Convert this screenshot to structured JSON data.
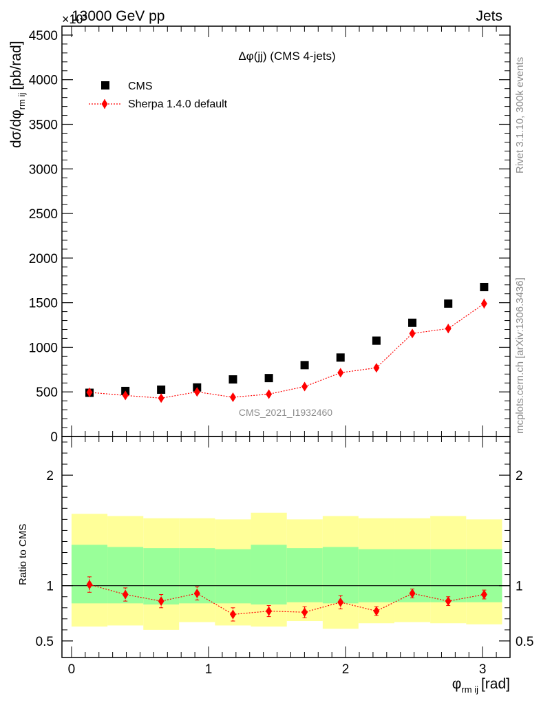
{
  "header": {
    "left": "13000 GeV pp",
    "right": "Jets",
    "multiplier": "×10³"
  },
  "side": {
    "rivet": "Rivet 3.1.10,  300k events",
    "mcplots": "mcplots.cern.ch [arXiv:1306.3436]"
  },
  "colors": {
    "data": "#000000",
    "mc": "#ff0000",
    "band_inner": "#99ff99",
    "band_outer": "#ffff99"
  },
  "chart_data": [
    {
      "type": "scatter",
      "title": "Δφ(jj) (CMS 4-jets)",
      "watermark": "CMS_2021_I1932460",
      "xlabel": "φ",
      "xlabel_sub": "rm ij",
      "xlabel_unit": "[rad]",
      "ylabel": "dσ/dφ",
      "ylabel_sub": "rm ij",
      "ylabel_unit": "[pb/rad]",
      "xlim": [
        -0.07,
        3.2
      ],
      "ylim": [
        0,
        4600
      ],
      "y_ticks": [
        0,
        500,
        1000,
        1500,
        2000,
        2500,
        3000,
        3500,
        4000,
        4500
      ],
      "y_tick_labels": [
        "0",
        "500",
        "1000",
        "1500",
        "2000",
        "2500",
        "3000",
        "3500",
        "4000",
        "4500"
      ],
      "x_ticks": [
        0,
        1,
        2,
        3
      ],
      "x_tick_labels": [
        "0",
        "1",
        "2",
        "3"
      ],
      "legend": {
        "placement": "top-left",
        "entries": [
          "CMS",
          "Sherpa 1.4.0 default"
        ]
      },
      "x": [
        0.131,
        0.393,
        0.654,
        0.916,
        1.178,
        1.44,
        1.701,
        1.963,
        2.225,
        2.487,
        2.749,
        3.011
      ],
      "series": [
        {
          "name": "CMS",
          "values": [
            490,
            510,
            525,
            550,
            640,
            655,
            800,
            885,
            1075,
            1275,
            1490,
            1675
          ]
        },
        {
          "name": "Sherpa 1.4.0 default",
          "values": [
            495,
            460,
            430,
            500,
            440,
            475,
            560,
            715,
            770,
            1155,
            1210,
            1490
          ],
          "errors": [
            25,
            25,
            25,
            35,
            25,
            25,
            30,
            40,
            40,
            45,
            50,
            55
          ]
        }
      ]
    },
    {
      "type": "scatter",
      "ylabel": "Ratio to CMS",
      "xlabel": "φ rm ij [rad]",
      "xlim": [
        -0.07,
        3.2
      ],
      "ylim": [
        0.35,
        2.35
      ],
      "y_ticks": [
        0.5,
        1,
        2
      ],
      "y_tick_labels": [
        "0.5",
        "1",
        "2"
      ],
      "reference_line": 1,
      "bin_edges": [
        0,
        0.262,
        0.524,
        0.785,
        1.047,
        1.309,
        1.571,
        1.833,
        2.094,
        2.356,
        2.618,
        2.88,
        3.142
      ],
      "band_inner": {
        "low": [
          0.84,
          0.84,
          0.83,
          0.84,
          0.84,
          0.83,
          0.85,
          0.84,
          0.85,
          0.85,
          0.85,
          0.85
        ],
        "high": [
          1.37,
          1.35,
          1.34,
          1.34,
          1.33,
          1.37,
          1.34,
          1.35,
          1.33,
          1.33,
          1.33,
          1.33
        ]
      },
      "band_outer": {
        "low": [
          0.63,
          0.64,
          0.6,
          0.67,
          0.64,
          0.63,
          0.68,
          0.61,
          0.66,
          0.67,
          0.66,
          0.65
        ],
        "high": [
          1.65,
          1.63,
          1.61,
          1.61,
          1.6,
          1.66,
          1.6,
          1.63,
          1.61,
          1.61,
          1.63,
          1.6
        ]
      },
      "series": [
        {
          "name": "Sherpa 1.4.0 default",
          "values": [
            1.01,
            0.92,
            0.86,
            0.93,
            0.74,
            0.77,
            0.76,
            0.85,
            0.77,
            0.93,
            0.86,
            0.92
          ],
          "errors": [
            0.07,
            0.06,
            0.06,
            0.06,
            0.06,
            0.05,
            0.05,
            0.06,
            0.04,
            0.04,
            0.04,
            0.04
          ]
        }
      ]
    }
  ]
}
